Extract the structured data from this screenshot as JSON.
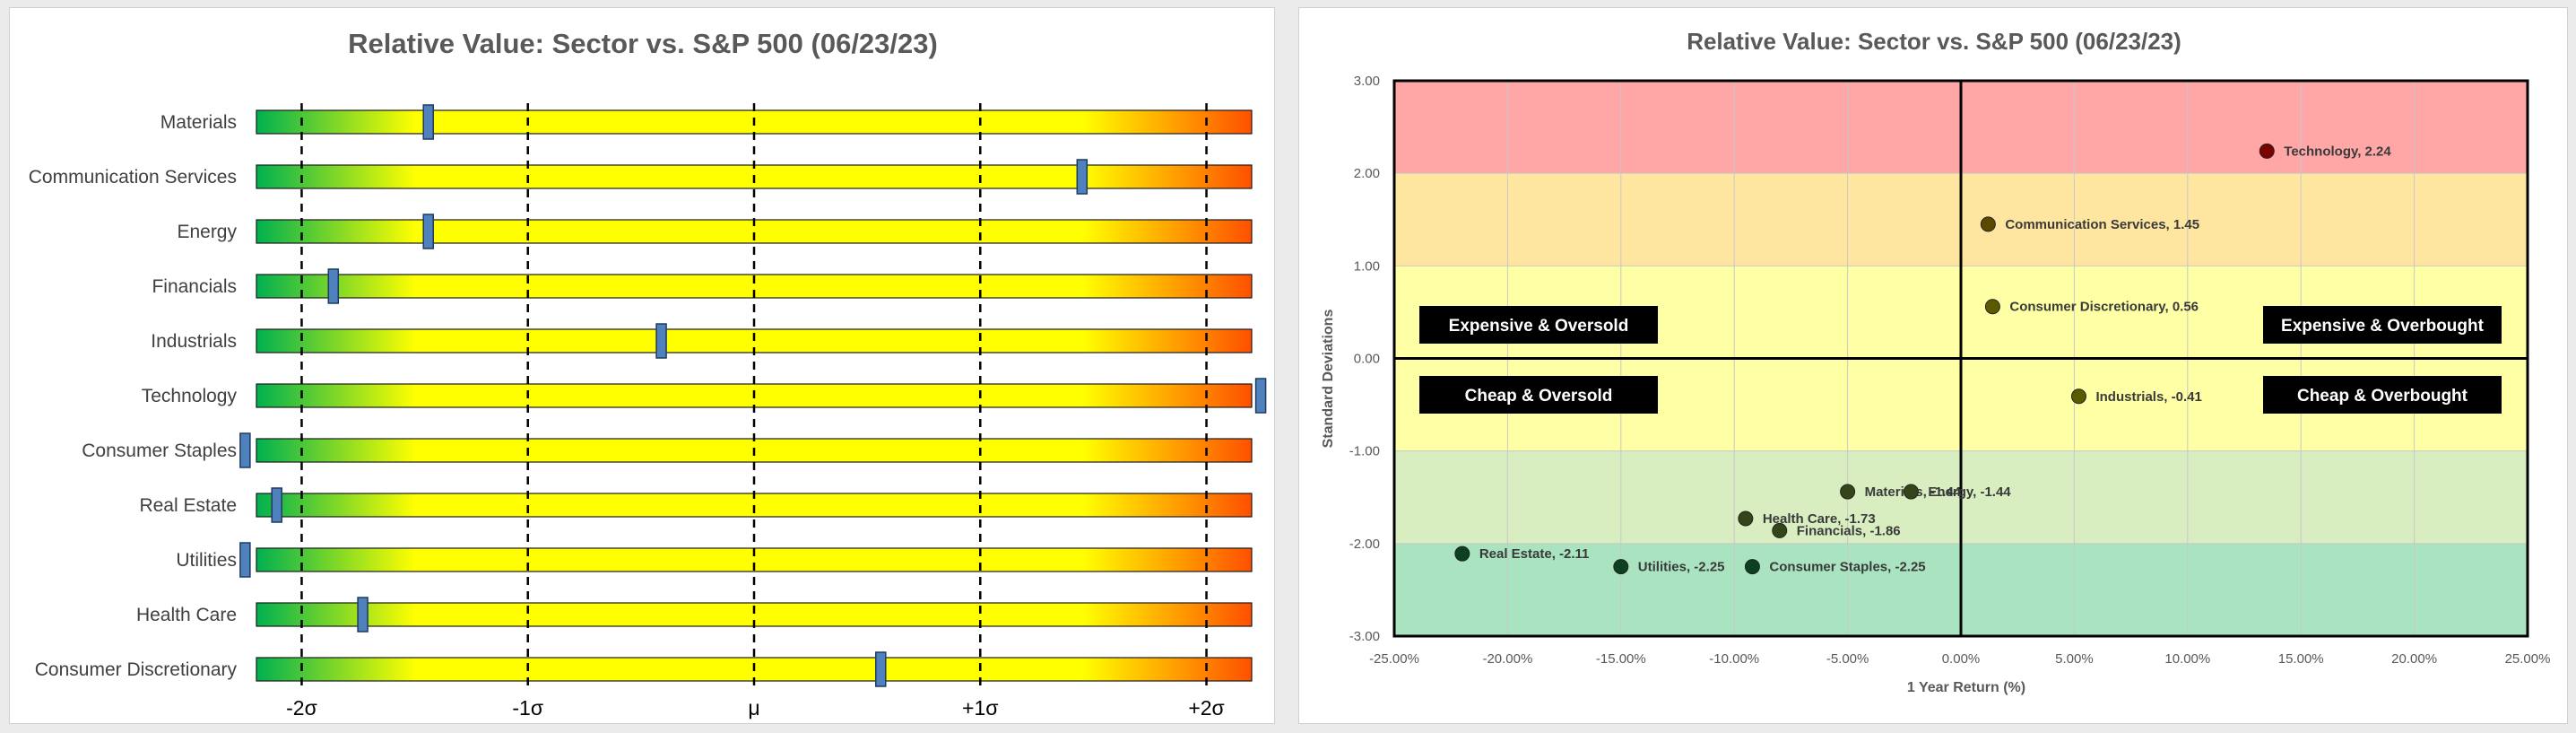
{
  "chart_data": [
    {
      "type": "bar",
      "title": "Relative Value: Sector vs. S&P 500 (06/23/23)",
      "categories": [
        "Materials",
        "Communication Services",
        "Energy",
        "Financials",
        "Industrials",
        "Technology",
        "Consumer Staples",
        "Real Estate",
        "Utilities",
        "Health Care",
        "Consumer Discretionary"
      ],
      "values": [
        -1.44,
        1.45,
        -1.44,
        -1.86,
        -0.41,
        2.24,
        -2.25,
        -2.11,
        -2.25,
        -1.73,
        0.56
      ],
      "xlim": [
        -2.2,
        2.2
      ],
      "ticks": [
        {
          "value": -2,
          "label": "-2σ"
        },
        {
          "value": -1,
          "label": "-1σ"
        },
        {
          "value": 0,
          "label": "μ"
        },
        {
          "value": 1,
          "label": "+1σ"
        },
        {
          "value": 2,
          "label": "+2σ"
        }
      ],
      "colors": {
        "low": "#00b050",
        "mid": "#ffff00",
        "high": "#ff5000",
        "marker": "#4f81bd"
      }
    },
    {
      "type": "scatter",
      "title": "Relative Value: Sector vs. S&P 500 (06/23/23)",
      "xlabel": "1 Year Return (%)",
      "ylabel": "Standard Deviations",
      "xlim": [
        -25,
        25
      ],
      "ylim": [
        -3,
        3
      ],
      "xticks": [
        "-25.00%",
        "-20.00%",
        "-15.00%",
        "-10.00%",
        "-5.00%",
        "0.00%",
        "5.00%",
        "10.00%",
        "15.00%",
        "20.00%",
        "25.00%"
      ],
      "yticks": [
        "3.00",
        "2.00",
        "1.00",
        "0.00",
        "-1.00",
        "-2.00",
        "-3.00"
      ],
      "points": [
        {
          "label": "Technology, 2.24",
          "x": 13.5,
          "y": 2.24,
          "color": "#7b0000"
        },
        {
          "label": "Communication Services, 1.45",
          "x": 1.2,
          "y": 1.45,
          "color": "#5a4a00"
        },
        {
          "label": "Consumer Discretionary, 0.56",
          "x": 1.4,
          "y": 0.56,
          "color": "#5c5a00"
        },
        {
          "label": "Industrials, -0.41",
          "x": 5.2,
          "y": -0.41,
          "color": "#5c5a00"
        },
        {
          "label": "Materials, -1.44",
          "x": -5.0,
          "y": -1.44,
          "color": "#34451a"
        },
        {
          "label": "Energy, -1.44",
          "x": -2.2,
          "y": -1.44,
          "color": "#34451a"
        },
        {
          "label": "Health Care, -1.73",
          "x": -9.5,
          "y": -1.73,
          "color": "#34451a"
        },
        {
          "label": "Financials, -1.86",
          "x": -8.0,
          "y": -1.86,
          "color": "#34451a"
        },
        {
          "label": "Real Estate, -2.11",
          "x": -22.0,
          "y": -2.11,
          "color": "#0b4020"
        },
        {
          "label": "Utilities, -2.25",
          "x": -15.0,
          "y": -2.25,
          "color": "#0b4020"
        },
        {
          "label": "Consumer Staples, -2.25",
          "x": -9.2,
          "y": -2.25,
          "color": "#0b4020"
        }
      ],
      "bands": [
        {
          "from": 2,
          "to": 3,
          "color": "#ffa6a6"
        },
        {
          "from": 1,
          "to": 2,
          "color": "#ffe6a0"
        },
        {
          "from": -1,
          "to": 1,
          "color": "#ffffa6"
        },
        {
          "from": -2,
          "to": -1,
          "color": "#d8edc0"
        },
        {
          "from": -3,
          "to": -2,
          "color": "#a9e3c0"
        }
      ],
      "quadrant_labels": {
        "top_left": "Expensive & Oversold",
        "top_right": "Expensive & Overbought",
        "bottom_left": "Cheap & Oversold",
        "bottom_right": "Cheap & Overbought"
      },
      "grid": true
    }
  ]
}
